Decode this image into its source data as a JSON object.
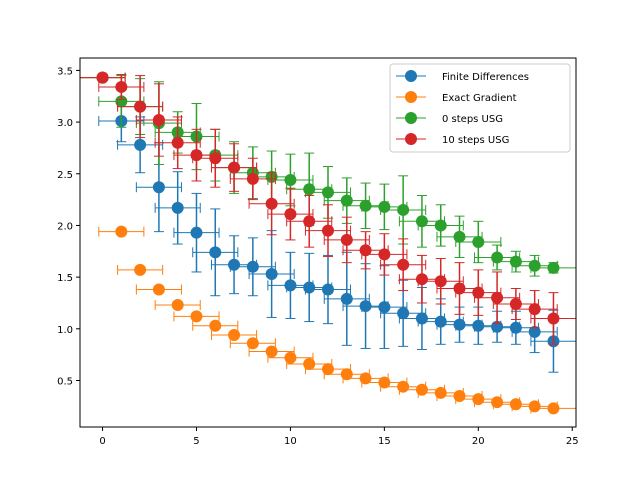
{
  "chart_data": {
    "type": "scatter",
    "title": "",
    "xlabel": "",
    "ylabel": "",
    "xlim": [
      -1.2,
      25.2
    ],
    "ylim": [
      0.05,
      3.62
    ],
    "xticks": [
      0,
      5,
      10,
      15,
      20,
      25
    ],
    "yticks": [
      0.5,
      1.0,
      1.5,
      2.0,
      2.5,
      3.0,
      3.5
    ],
    "xtick_labels": [
      "0",
      "5",
      "10",
      "15",
      "20",
      "25"
    ],
    "ytick_labels": [
      "0.5",
      "1.0",
      "1.5",
      "2.0",
      "2.5",
      "3.0",
      "3.5"
    ],
    "grid": false,
    "legend_position": "top-right",
    "series": [
      {
        "name": "Finite Differences",
        "color": "#1f77b4",
        "x": [
          0,
          1,
          2,
          3,
          4,
          5,
          6,
          7,
          8,
          9,
          10,
          11,
          12,
          13,
          14,
          15,
          16,
          17,
          18,
          19,
          20,
          21,
          22,
          23,
          24
        ],
        "y": [
          3.43,
          3.01,
          2.78,
          2.37,
          2.17,
          1.93,
          1.74,
          1.62,
          1.6,
          1.53,
          1.42,
          1.4,
          1.38,
          1.29,
          1.22,
          1.21,
          1.15,
          1.1,
          1.07,
          1.04,
          1.03,
          1.02,
          1.01,
          0.97,
          0.88
        ],
        "xerr": 1.2,
        "yerr": [
          0.0,
          0.2,
          0.27,
          0.43,
          0.35,
          0.38,
          0.42,
          0.28,
          0.28,
          0.42,
          0.32,
          0.33,
          0.33,
          0.45,
          0.41,
          0.4,
          0.32,
          0.3,
          0.22,
          0.17,
          0.18,
          0.15,
          0.16,
          0.2,
          0.3
        ]
      },
      {
        "name": "Exact Gradient",
        "color": "#ff7f0e",
        "x": [
          0,
          1,
          2,
          3,
          4,
          5,
          6,
          7,
          8,
          9,
          10,
          11,
          12,
          13,
          14,
          15,
          16,
          17,
          18,
          19,
          20,
          21,
          22,
          23,
          24
        ],
        "y": [
          3.43,
          1.94,
          1.57,
          1.38,
          1.23,
          1.12,
          1.03,
          0.94,
          0.86,
          0.78,
          0.72,
          0.66,
          0.61,
          0.56,
          0.52,
          0.48,
          0.44,
          0.41,
          0.38,
          0.35,
          0.32,
          0.29,
          0.27,
          0.25,
          0.23
        ],
        "xerr": 1.2,
        "yerr": 0
      },
      {
        "name": "0 steps USG",
        "color": "#2ca02c",
        "x": [
          0,
          1,
          2,
          3,
          4,
          5,
          6,
          7,
          8,
          9,
          10,
          11,
          12,
          13,
          14,
          15,
          16,
          17,
          18,
          19,
          20,
          21,
          22,
          23,
          24
        ],
        "y": [
          3.43,
          3.2,
          3.15,
          2.99,
          2.9,
          2.86,
          2.68,
          2.56,
          2.51,
          2.47,
          2.44,
          2.35,
          2.32,
          2.24,
          2.19,
          2.18,
          2.15,
          2.04,
          2.0,
          1.89,
          1.84,
          1.69,
          1.65,
          1.61,
          1.59
        ],
        "xerr": 1.2,
        "yerr": [
          0.0,
          0.25,
          0.27,
          0.4,
          0.2,
          0.32,
          0.25,
          0.25,
          0.25,
          0.25,
          0.25,
          0.35,
          0.25,
          0.22,
          0.22,
          0.22,
          0.33,
          0.25,
          0.2,
          0.2,
          0.2,
          0.12,
          0.1,
          0.1,
          0.05
        ]
      },
      {
        "name": "10 steps USG",
        "color": "#d62728",
        "x": [
          0,
          1,
          2,
          3,
          4,
          5,
          6,
          7,
          8,
          9,
          10,
          11,
          12,
          13,
          14,
          15,
          16,
          17,
          18,
          19,
          20,
          21,
          22,
          23,
          24
        ],
        "y": [
          3.43,
          3.34,
          3.15,
          3.02,
          2.8,
          2.68,
          2.65,
          2.56,
          2.45,
          2.21,
          2.11,
          2.04,
          1.95,
          1.86,
          1.76,
          1.72,
          1.62,
          1.48,
          1.46,
          1.39,
          1.35,
          1.3,
          1.24,
          1.19,
          1.1
        ],
        "xerr": 1.2,
        "yerr": [
          0.0,
          0.12,
          0.3,
          0.35,
          0.25,
          0.25,
          0.28,
          0.23,
          0.2,
          0.3,
          0.25,
          0.25,
          0.25,
          0.22,
          0.18,
          0.2,
          0.25,
          0.23,
          0.22,
          0.25,
          0.22,
          0.25,
          0.15,
          0.18,
          0.25
        ]
      }
    ]
  }
}
